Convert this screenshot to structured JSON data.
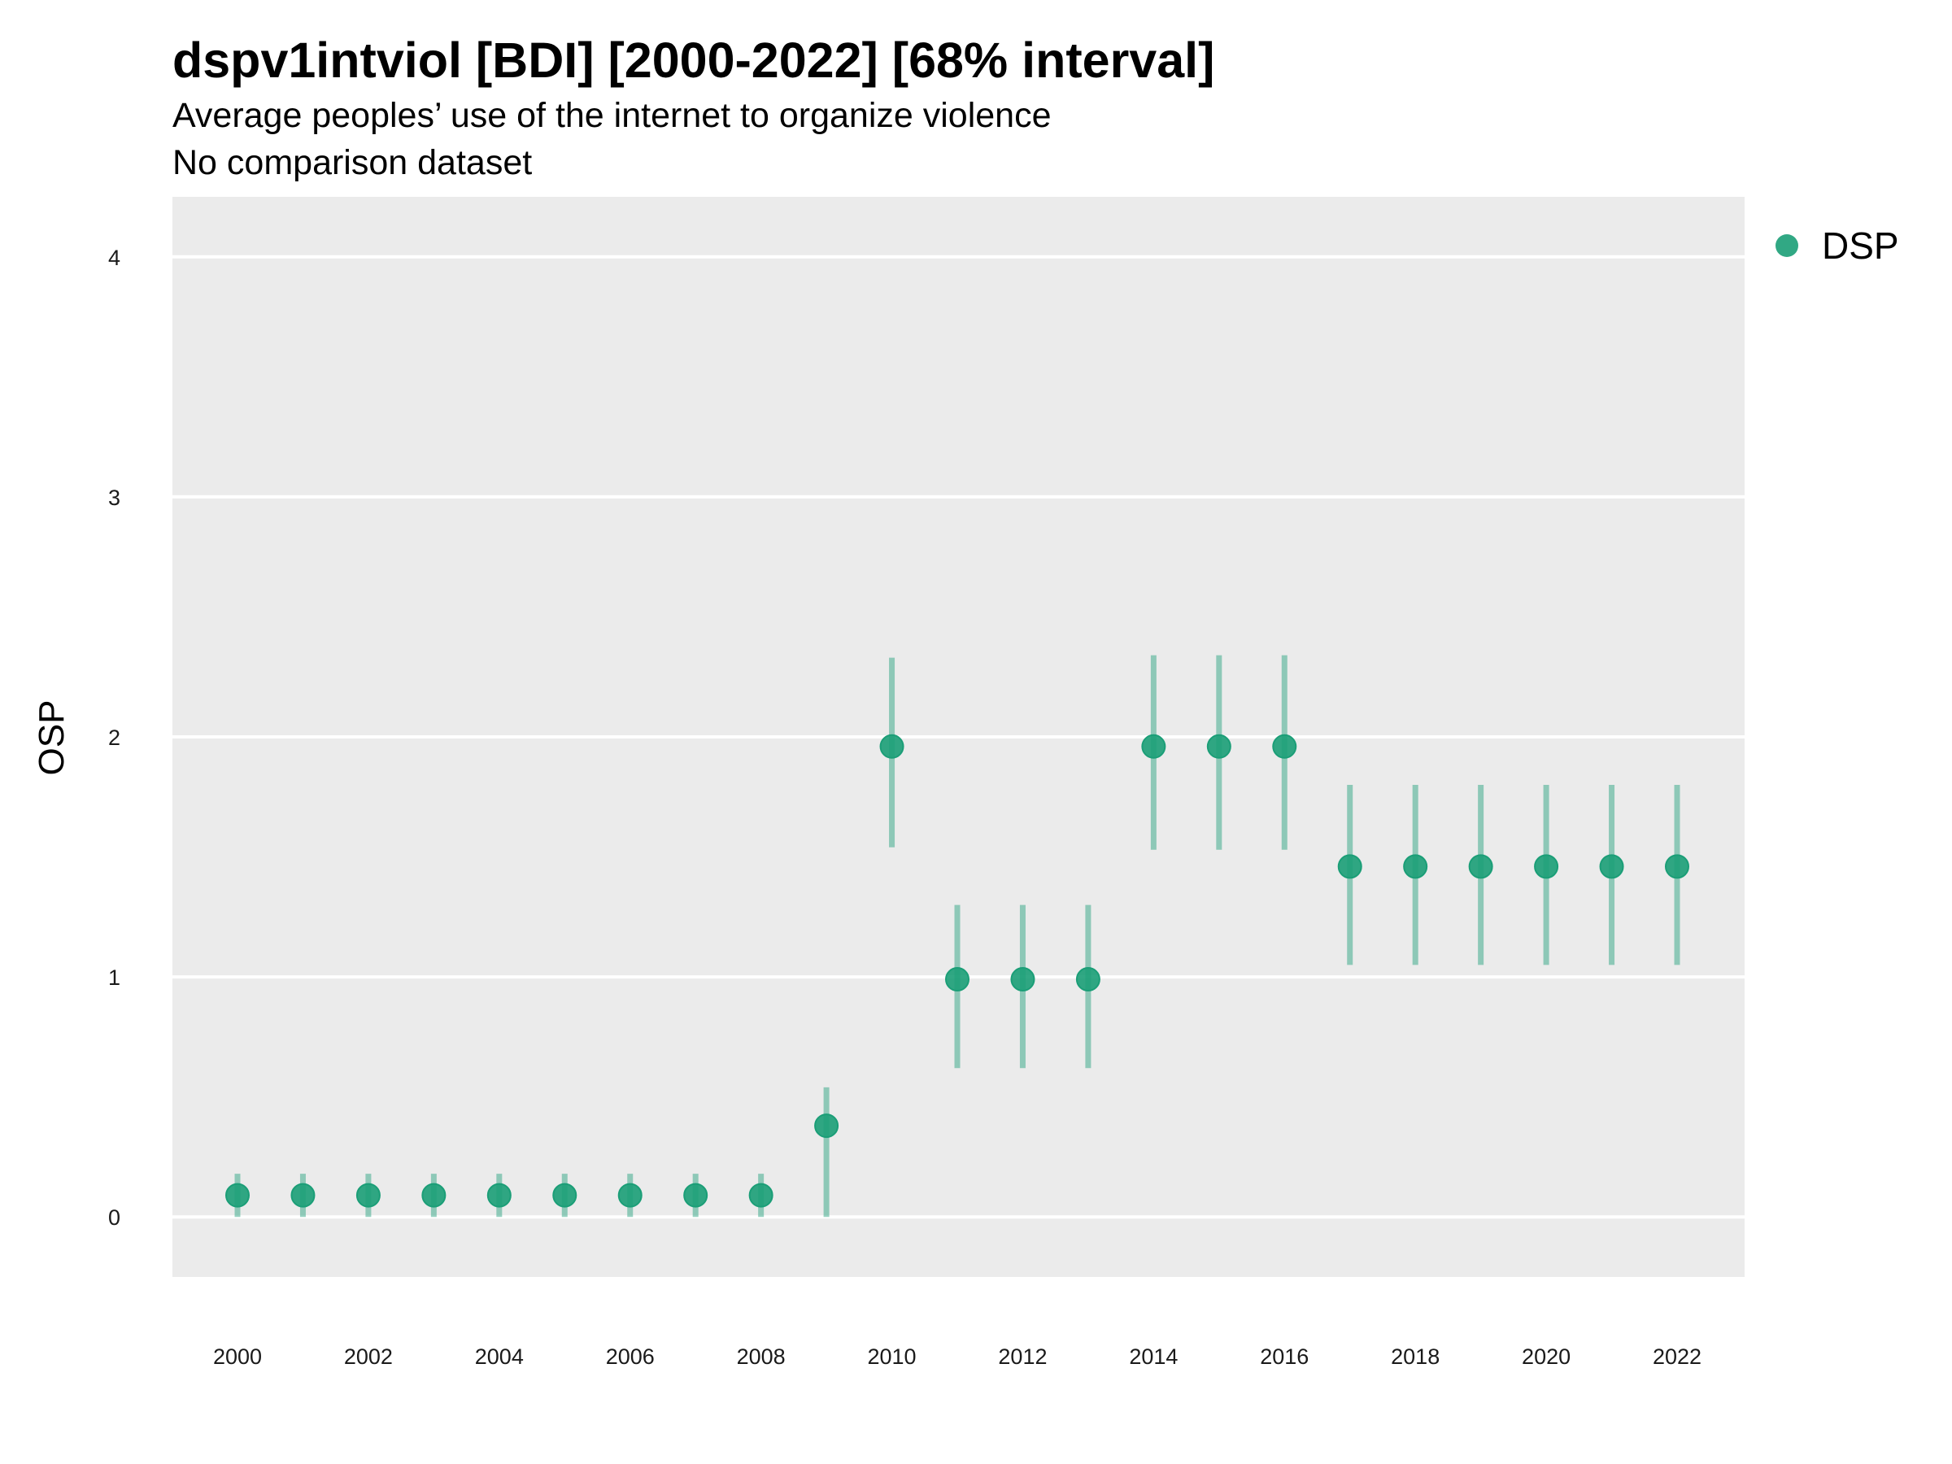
{
  "chart_data": {
    "type": "scatter",
    "title": "dspv1intviol [BDI] [2000-2022] [68% interval]",
    "subtitle": "Average peoples’ use of the internet to organize violence",
    "caption": "No comparison dataset",
    "xlabel": "",
    "ylabel": "OSP",
    "ylim": [
      -0.25,
      4.25
    ],
    "yticks": [
      "0",
      "1",
      "2",
      "3",
      "4"
    ],
    "xticks": [
      "2000",
      "2002",
      "2004",
      "2006",
      "2008",
      "2010",
      "2012",
      "2014",
      "2016",
      "2018",
      "2020",
      "2022"
    ],
    "grid": true,
    "legend_position": "right",
    "colors": {
      "series": "#1b9e77",
      "panel": "#ebebeb",
      "grid": "#ffffff"
    },
    "series": [
      {
        "name": "DSP",
        "x": [
          2000,
          2001,
          2002,
          2003,
          2004,
          2005,
          2006,
          2007,
          2008,
          2009,
          2010,
          2011,
          2012,
          2013,
          2014,
          2015,
          2016,
          2017,
          2018,
          2019,
          2020,
          2021,
          2022
        ],
        "values": [
          0.09,
          0.09,
          0.09,
          0.09,
          0.09,
          0.09,
          0.09,
          0.09,
          0.09,
          0.38,
          1.96,
          0.99,
          0.99,
          0.99,
          1.96,
          1.96,
          1.96,
          1.46,
          1.46,
          1.46,
          1.46,
          1.46,
          1.46
        ],
        "lower": [
          0.0,
          0.0,
          0.0,
          0.0,
          0.0,
          0.0,
          0.0,
          0.0,
          0.0,
          0.0,
          1.54,
          0.62,
          0.62,
          0.62,
          1.53,
          1.53,
          1.53,
          1.05,
          1.05,
          1.05,
          1.05,
          1.05,
          1.05
        ],
        "upper": [
          0.18,
          0.18,
          0.18,
          0.18,
          0.18,
          0.18,
          0.18,
          0.18,
          0.18,
          0.54,
          2.33,
          1.3,
          1.3,
          1.3,
          2.34,
          2.34,
          2.34,
          1.8,
          1.8,
          1.8,
          1.8,
          1.8,
          1.8
        ]
      }
    ]
  }
}
